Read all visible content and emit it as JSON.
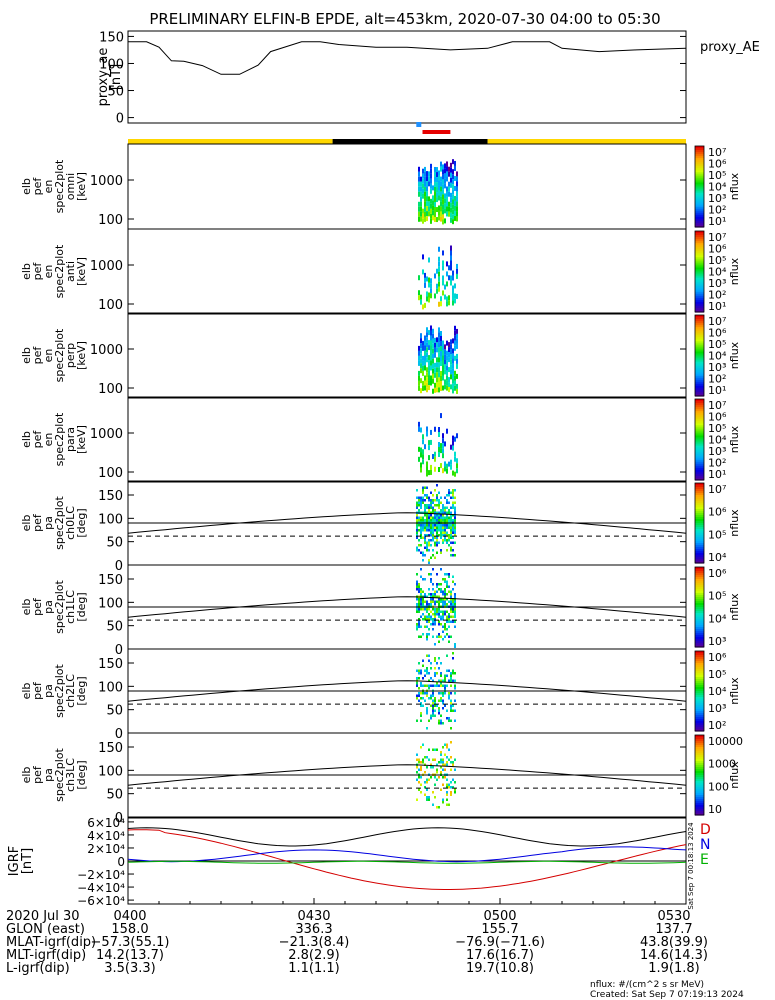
{
  "title": "PRELIMINARY ELFIN-B EPDE, alt=453km, 2020-07-30 04:00 to 05:30",
  "colors": {
    "bar_yellow": "#ffd700",
    "bar_black": "#000000",
    "blue_marker": "#1e90ff",
    "red_marker": "#e60000"
  },
  "ae_panel": {
    "ylabel": [
      "proxy_ae",
      "[nT]"
    ],
    "yticks": [
      "150",
      "100",
      "50",
      "0"
    ],
    "ytick_values": [
      150,
      100,
      50,
      0
    ],
    "ylim": [
      -10,
      160
    ],
    "legend": "proxy_AE",
    "series_t": [
      0,
      3,
      5,
      7,
      9,
      12,
      15,
      18,
      21,
      23,
      28,
      31,
      34,
      40,
      45,
      52,
      58,
      62,
      68,
      70,
      76,
      82,
      90
    ],
    "series_v": [
      140,
      140,
      130,
      105,
      104,
      96,
      80,
      80,
      97,
      122,
      140,
      140,
      135,
      130,
      130,
      125,
      128,
      140,
      140,
      128,
      122,
      125,
      128
    ]
  },
  "spectra": [
    {
      "ylabel": [
        "elb",
        "pef",
        "en",
        "spec2plot",
        "omni",
        "[keV]"
      ],
      "yticks": [
        "1000",
        "100"
      ]
    },
    {
      "ylabel": [
        "elb",
        "pef",
        "en",
        "spec2plot",
        "anti",
        "[keV]"
      ],
      "yticks": [
        "1000",
        "100"
      ]
    },
    {
      "ylabel": [
        "elb",
        "pef",
        "en",
        "spec2plot",
        "perp",
        "[keV]"
      ],
      "yticks": [
        "1000",
        "100"
      ]
    },
    {
      "ylabel": [
        "elb",
        "pef",
        "en",
        "spec2plot",
        "para",
        "[keV]"
      ],
      "yticks": [
        "1000",
        "100"
      ]
    }
  ],
  "pitch": [
    {
      "ylabel": [
        "elb",
        "pef",
        "pa",
        "spec2plot",
        "ch0LC",
        "[deg]"
      ],
      "yticks": [
        "150",
        "100",
        "50",
        "0"
      ]
    },
    {
      "ylabel": [
        "elb",
        "pef",
        "pa",
        "spec2plot",
        "ch1LC",
        "[deg]"
      ],
      "yticks": [
        "150",
        "100",
        "50",
        "0"
      ]
    },
    {
      "ylabel": [
        "elb",
        "pef",
        "pa",
        "spec2plot",
        "ch2LC",
        "[deg]"
      ],
      "yticks": [
        "150",
        "100",
        "50",
        "0"
      ]
    },
    {
      "ylabel": [
        "elb",
        "pef",
        "pa",
        "spec2plot",
        "ch3LC",
        "[deg]"
      ],
      "yticks": [
        "150",
        "100",
        "50",
        "0"
      ]
    }
  ],
  "colorbars": [
    {
      "unit": "nflux",
      "labels": [
        "10⁷",
        "10⁶",
        "10⁵",
        "10⁴",
        "10³",
        "10²",
        "10¹"
      ]
    },
    {
      "unit": "nflux",
      "labels": [
        "10⁷",
        "10⁶",
        "10⁵",
        "10⁴",
        "10³",
        "10²",
        "10¹"
      ]
    },
    {
      "unit": "nflux",
      "labels": [
        "10⁷",
        "10⁶",
        "10⁵",
        "10⁴",
        "10³",
        "10²",
        "10¹"
      ]
    },
    {
      "unit": "nflux",
      "labels": [
        "10⁷",
        "10⁶",
        "10⁵",
        "10⁴",
        "10³",
        "10²",
        "10¹"
      ]
    },
    {
      "unit": "nflux",
      "labels": [
        "10⁷",
        "10⁶",
        "10⁵",
        "10⁴"
      ]
    },
    {
      "unit": "nflux",
      "labels": [
        "10⁶",
        "10⁵",
        "10⁴",
        "10³"
      ]
    },
    {
      "unit": "nflux",
      "labels": [
        "10⁶",
        "10⁵",
        "10⁴",
        "10³",
        "10²"
      ]
    },
    {
      "unit": "nflux",
      "labels": [
        "10000",
        "1000",
        "100",
        "10"
      ]
    }
  ],
  "igrf_panel": {
    "ylabel": [
      "IGRF",
      "[nT]"
    ],
    "yticks": [
      "6×10⁴",
      "4×10⁴",
      "2×10⁴",
      "0",
      "−2×10⁴",
      "−4×10⁴",
      "−6×10⁴"
    ],
    "ytick_values": [
      60000,
      40000,
      20000,
      0,
      -20000,
      -40000,
      -60000
    ],
    "ylim": [
      -66000,
      66000
    ],
    "legend": [
      "D",
      "N",
      "E"
    ],
    "legend_colors": [
      "#d40000",
      "#0000e0",
      "#00b000"
    ],
    "created_side": "Sat Sep  7 00:18:13 2024"
  },
  "chart_data": [
    {
      "type": "line",
      "title": "PRELIMINARY ELFIN-B EPDE, alt=453km, 2020-07-30 04:00 to 05:30",
      "ylabel": "proxy_ae [nT]",
      "series": [
        {
          "name": "proxy_AE"
        }
      ],
      "ylim": [
        -10,
        160
      ]
    },
    {
      "type": "heatmap",
      "ylabel": "elb pef en spec2plot omni [keV]",
      "yticks": [
        "1000",
        "100"
      ],
      "colorbar": "nflux"
    },
    {
      "type": "heatmap",
      "ylabel": "elb pef en spec2plot anti [keV]",
      "yticks": [
        "1000",
        "100"
      ],
      "colorbar": "nflux"
    },
    {
      "type": "heatmap",
      "ylabel": "elb pef en spec2plot perp [keV]",
      "yticks": [
        "1000",
        "100"
      ],
      "colorbar": "nflux"
    },
    {
      "type": "heatmap",
      "ylabel": "elb pef en spec2plot para [keV]",
      "yticks": [
        "1000",
        "100"
      ],
      "colorbar": "nflux"
    },
    {
      "type": "heatmap",
      "ylabel": "elb pef pa spec2plot ch0LC [deg]",
      "ylim": [
        0,
        180
      ],
      "colorbar": "nflux"
    },
    {
      "type": "heatmap",
      "ylabel": "elb pef pa spec2plot ch1LC [deg]",
      "ylim": [
        0,
        180
      ],
      "colorbar": "nflux"
    },
    {
      "type": "heatmap",
      "ylabel": "elb pef pa spec2plot ch2LC [deg]",
      "ylim": [
        0,
        180
      ],
      "colorbar": "nflux"
    },
    {
      "type": "heatmap",
      "ylabel": "elb pef pa spec2plot ch3LC [deg]",
      "ylim": [
        0,
        180
      ],
      "colorbar": "nflux"
    },
    {
      "type": "line",
      "ylabel": "IGRF [nT]",
      "ylim": [
        -66000,
        66000
      ],
      "series": [
        {
          "name": "D"
        },
        {
          "name": "N"
        },
        {
          "name": "E"
        }
      ]
    }
  ],
  "axis": {
    "xticks": [
      "0400",
      "0430",
      "0500",
      "0530"
    ],
    "rows": [
      {
        "label": "2020 Jul 30",
        "values": [
          "0400",
          "0430",
          "0500",
          "0530"
        ]
      },
      {
        "label": "GLON (east)",
        "values": [
          "158.0",
          "336.3",
          "155.7",
          "137.7"
        ]
      },
      {
        "label": "MLAT-igrf(dip)",
        "values": [
          "−57.3(55.1)",
          "−21.3(8.4)",
          "−76.9(−71.6)",
          "43.8(39.9)"
        ]
      },
      {
        "label": "MLT-igrf(dip)",
        "values": [
          "14.2(13.7)",
          "2.8(2.9)",
          "17.6(16.7)",
          "14.6(14.3)"
        ]
      },
      {
        "label": "L-igrf(dip)",
        "values": [
          "3.5(3.3)",
          "1.1(1.1)",
          "19.7(10.8)",
          "1.9(1.8)"
        ]
      }
    ]
  },
  "footer": {
    "units": "nflux: #/(cm^2 s sr MeV)",
    "created": "Created: Sat Sep  7 07:19:13 2024"
  }
}
